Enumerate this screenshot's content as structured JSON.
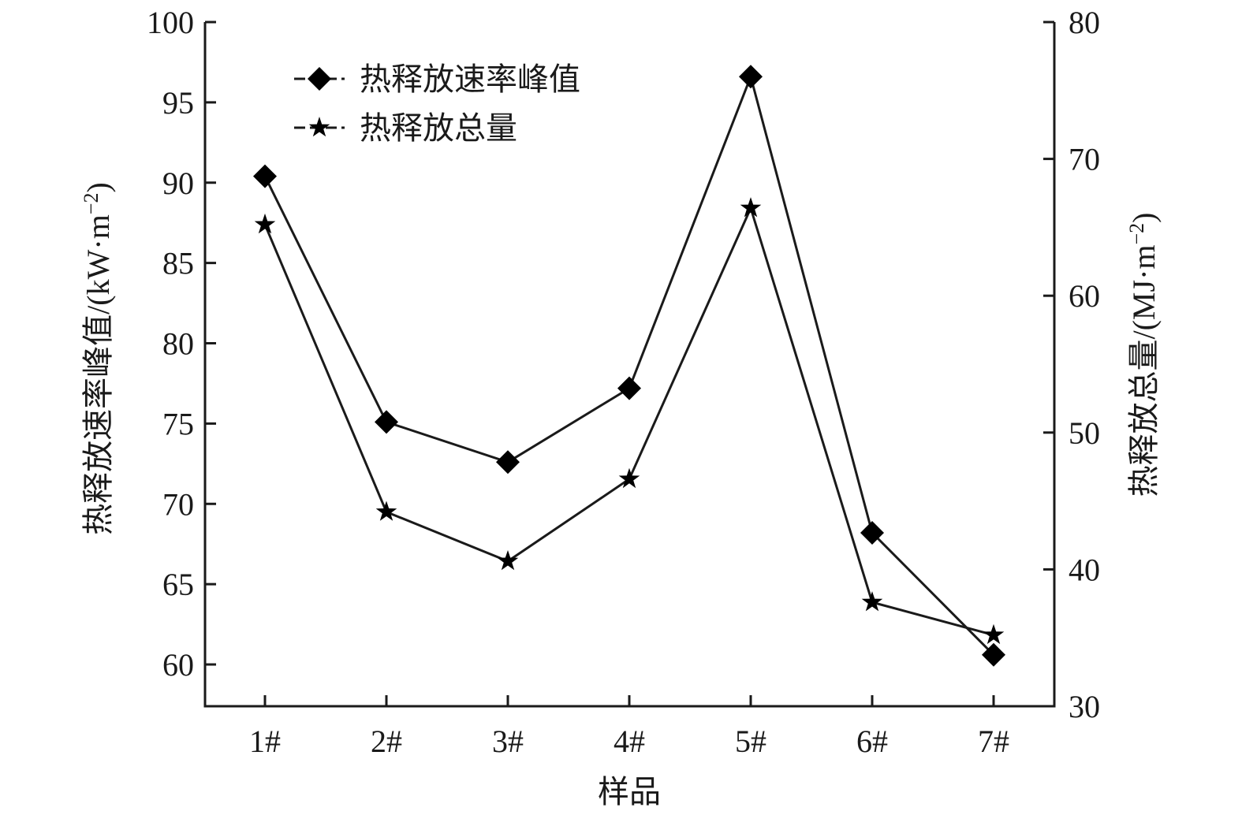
{
  "chart_data": {
    "type": "line",
    "title": "",
    "xlabel": "样品",
    "ylabel_left": "热释放速率峰值/(kW·m",
    "ylabel_right": "热释放总量/(MJ·m",
    "ylabel_unit_exponent": "−2",
    "categories": [
      "1#",
      "2#",
      "3#",
      "4#",
      "5#",
      "6#",
      "7#"
    ],
    "y_left": {
      "range": [
        57.4,
        100
      ],
      "ticks": [
        60,
        65,
        70,
        75,
        80,
        85,
        90,
        95,
        100
      ]
    },
    "y_right": {
      "range": [
        30,
        80
      ],
      "ticks": [
        30,
        40,
        50,
        60,
        70,
        80
      ]
    },
    "series": [
      {
        "name": "热释放速率峰值",
        "axis": "left",
        "marker": "diamond",
        "color": "#000000",
        "values": [
          90.4,
          75.1,
          72.6,
          77.2,
          96.6,
          68.2,
          60.6
        ]
      },
      {
        "name": "热释放总量",
        "axis": "right",
        "marker": "star",
        "color": "#000000",
        "values": [
          65.2,
          44.2,
          40.6,
          46.6,
          66.4,
          37.6,
          35.2
        ]
      }
    ],
    "legend": {
      "placement": "top-left"
    },
    "grid": false
  }
}
